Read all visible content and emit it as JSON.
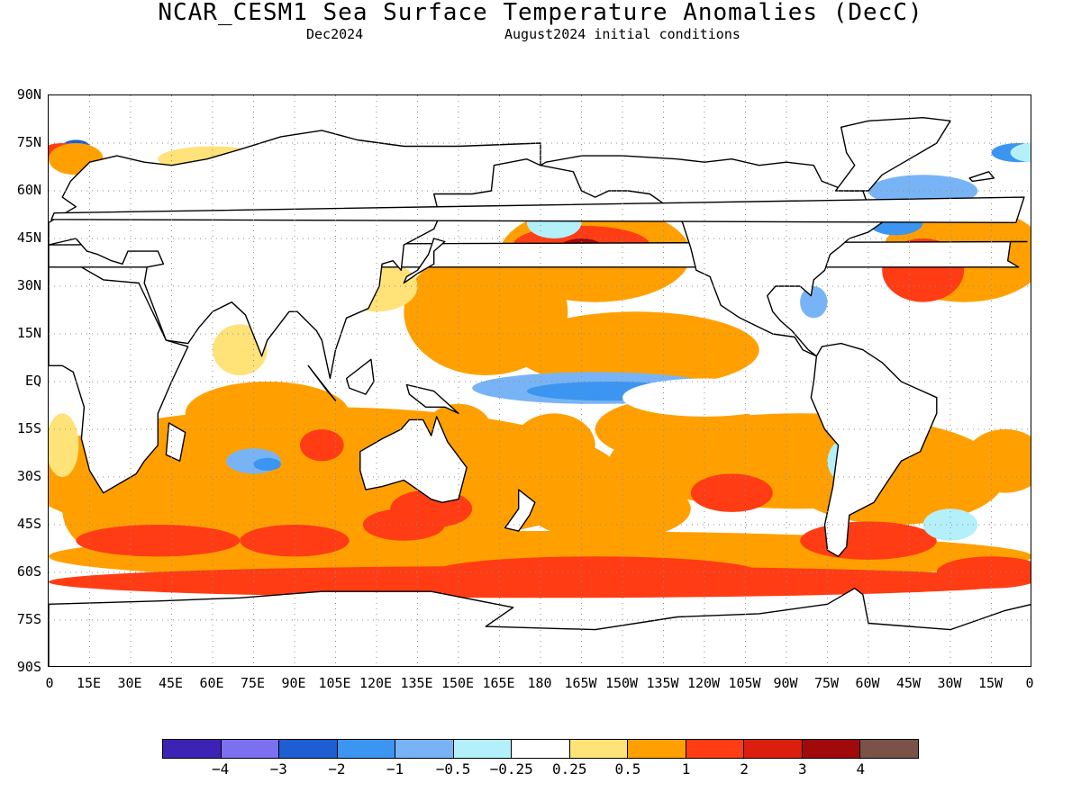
{
  "header": {
    "title": "NCAR_CESM1 Sea Surface Temperature Anomalies (DecC)",
    "valid_month": "Dec2024",
    "init_conditions": "August2024 initial conditions"
  },
  "map": {
    "projection": "equirectangular",
    "lon_range": [
      0,
      360
    ],
    "lat_range": [
      -90,
      90
    ],
    "grid": "dotted",
    "lat_ticks": [
      "90N",
      "75N",
      "60N",
      "45N",
      "30N",
      "15N",
      "EQ",
      "15S",
      "30S",
      "45S",
      "60S",
      "75S",
      "90S"
    ],
    "lon_ticks": [
      "0",
      "15E",
      "30E",
      "45E",
      "60E",
      "75E",
      "90E",
      "105E",
      "120E",
      "135E",
      "150E",
      "165E",
      "180",
      "165W",
      "150W",
      "135W",
      "120W",
      "105W",
      "90W",
      "75W",
      "60W",
      "45W",
      "30W",
      "15W",
      "0"
    ]
  },
  "legend": {
    "colors": [
      "#3d23b4",
      "#7c6ff0",
      "#1e5ed2",
      "#3c95f0",
      "#78b4f5",
      "#b4f0fa",
      "#ffffff",
      "#ffe278",
      "#ffa000",
      "#ff3c14",
      "#dc1e0f",
      "#a00a0a",
      "#7a5248"
    ],
    "labels": [
      "−4",
      "−3",
      "−2",
      "−1",
      "−0.5",
      "−0.25",
      "0.25",
      "0.5",
      "1",
      "2",
      "3",
      "4"
    ]
  }
}
